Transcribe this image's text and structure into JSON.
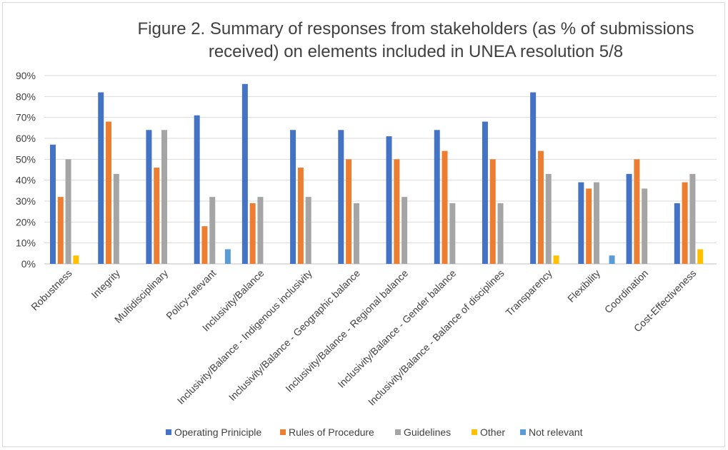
{
  "chart_data": {
    "type": "bar",
    "title_lines": [
      "Figure 2. Summary of responses from stakeholders (as % of submissions",
      "received) on elements included in UNEA resolution 5/8"
    ],
    "xlabel": "",
    "ylabel": "",
    "ylim": [
      0,
      90
    ],
    "y_ticks": [
      "0%",
      "10%",
      "20%",
      "30%",
      "40%",
      "50%",
      "60%",
      "70%",
      "80%",
      "90%"
    ],
    "y_tick_values": [
      0,
      10,
      20,
      30,
      40,
      50,
      60,
      70,
      80,
      90
    ],
    "grid": true,
    "legend_position": "bottom",
    "categories": [
      "Robustness",
      "Integrity",
      "Multidisciplinary",
      "Policy-relevant",
      "Inclusivity/Balance",
      "Inclusivity/Balance - Indigenous inclusivity",
      "Inclusivity/Balance - Geographic balance",
      "Inclusivity/Balance - Regional balance",
      "Inclusivity/Balance - Gender balance",
      "Inclusivity/Balance - Balance of disciplines",
      "Transparency",
      "Flexibility",
      "Coordination",
      "Cost-Effectiveness"
    ],
    "series": [
      {
        "name": "Operating Priniciple",
        "color": "#4472c4",
        "values": [
          57,
          82,
          64,
          71,
          86,
          64,
          64,
          61,
          64,
          68,
          82,
          39,
          43,
          29
        ]
      },
      {
        "name": "Rules of Procedure",
        "color": "#ed7d31",
        "values": [
          32,
          68,
          46,
          18,
          29,
          46,
          50,
          50,
          54,
          50,
          54,
          36,
          50,
          39
        ]
      },
      {
        "name": "Guidelines",
        "color": "#a5a5a5",
        "values": [
          50,
          43,
          64,
          32,
          32,
          32,
          29,
          32,
          29,
          29,
          43,
          39,
          36,
          43
        ]
      },
      {
        "name": "Other",
        "color": "#ffc000",
        "values": [
          4,
          0,
          0,
          0,
          0,
          0,
          0,
          0,
          0,
          0,
          4,
          0,
          0,
          7
        ]
      },
      {
        "name": "Not relevant",
        "color": "#5b9bd5",
        "values": [
          0,
          0,
          0,
          7,
          0,
          0,
          0,
          0,
          0,
          0,
          0,
          4,
          0,
          0
        ]
      }
    ]
  }
}
